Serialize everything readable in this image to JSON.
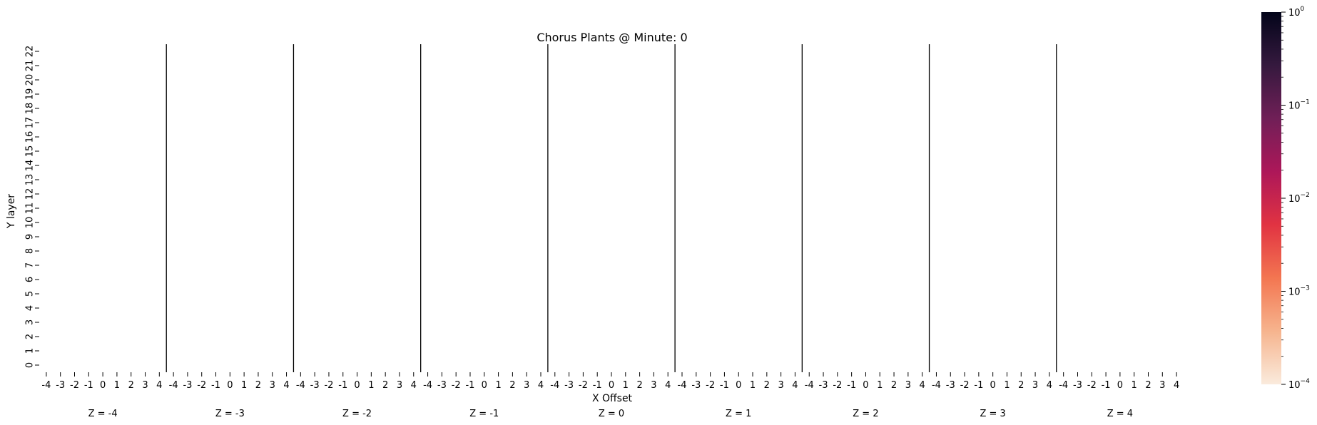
{
  "chart_data": {
    "type": "heatmap",
    "title": "Chorus Plants @ Minute: 0",
    "xlabel": "X Offset",
    "ylabel": "Y layer",
    "x_ticks": [
      "-4",
      "-3",
      "-2",
      "-1",
      "0",
      "1",
      "2",
      "3",
      "4"
    ],
    "y_ticks": [
      "0",
      "1",
      "2",
      "3",
      "4",
      "5",
      "6",
      "7",
      "8",
      "9",
      "10",
      "11",
      "12",
      "13",
      "14",
      "15",
      "16",
      "17",
      "18",
      "19",
      "20",
      "21",
      "22"
    ],
    "z_groups": [
      "Z = -4",
      "Z = -3",
      "Z = -2",
      "Z = -1",
      "Z = 0",
      "Z = 1",
      "Z = 2",
      "Z = 3",
      "Z = 4"
    ],
    "values": "all cells empty",
    "colorbar": {
      "scale": "log",
      "range": [
        0.0001,
        1
      ],
      "tick_bases": [
        "10",
        "10",
        "10",
        "10",
        "10"
      ],
      "tick_exponents": [
        "−4",
        "−3",
        "−2",
        "−1",
        "0"
      ],
      "colormap": [
        "#faebdd",
        "#f6b48e",
        "#f37651",
        "#e13342",
        "#ad1759",
        "#701f57",
        "#35193e",
        "#03051a"
      ]
    },
    "grid": false,
    "separators": true
  }
}
